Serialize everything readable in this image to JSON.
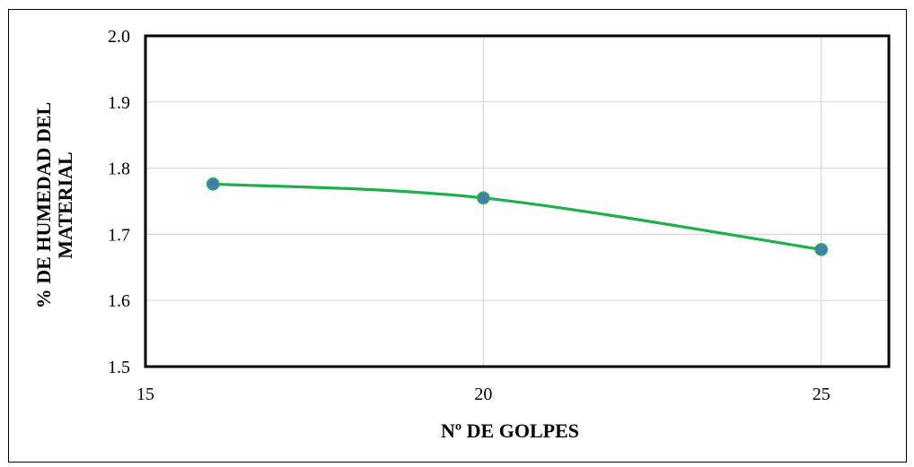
{
  "chart_data": {
    "type": "line",
    "title": "",
    "xlabel": "Nº DE GOLPES",
    "ylabel_lines": [
      "% DE HUMEDAD DEL",
      "MATERIAL"
    ],
    "x": [
      16,
      20,
      25
    ],
    "series": [
      {
        "values": [
          1.776,
          1.755,
          1.677
        ]
      }
    ],
    "xlim": [
      15,
      26
    ],
    "ylim": [
      1.5,
      2.0
    ],
    "x_ticks": [
      15,
      20,
      25
    ],
    "y_ticks": [
      1.5,
      1.6,
      1.7,
      1.8,
      1.9,
      2.0
    ],
    "x_tick_labels": [
      "15",
      "20",
      "25"
    ],
    "y_tick_labels": [
      "1.5",
      "1.6",
      "1.7",
      "1.8",
      "1.9",
      "2.0"
    ],
    "grid": true,
    "smooth": true,
    "colors": {
      "line": "#1db04b",
      "marker_fill": "#4a7ab5",
      "grid": "#d9d9d9",
      "axis": "#000000"
    }
  }
}
